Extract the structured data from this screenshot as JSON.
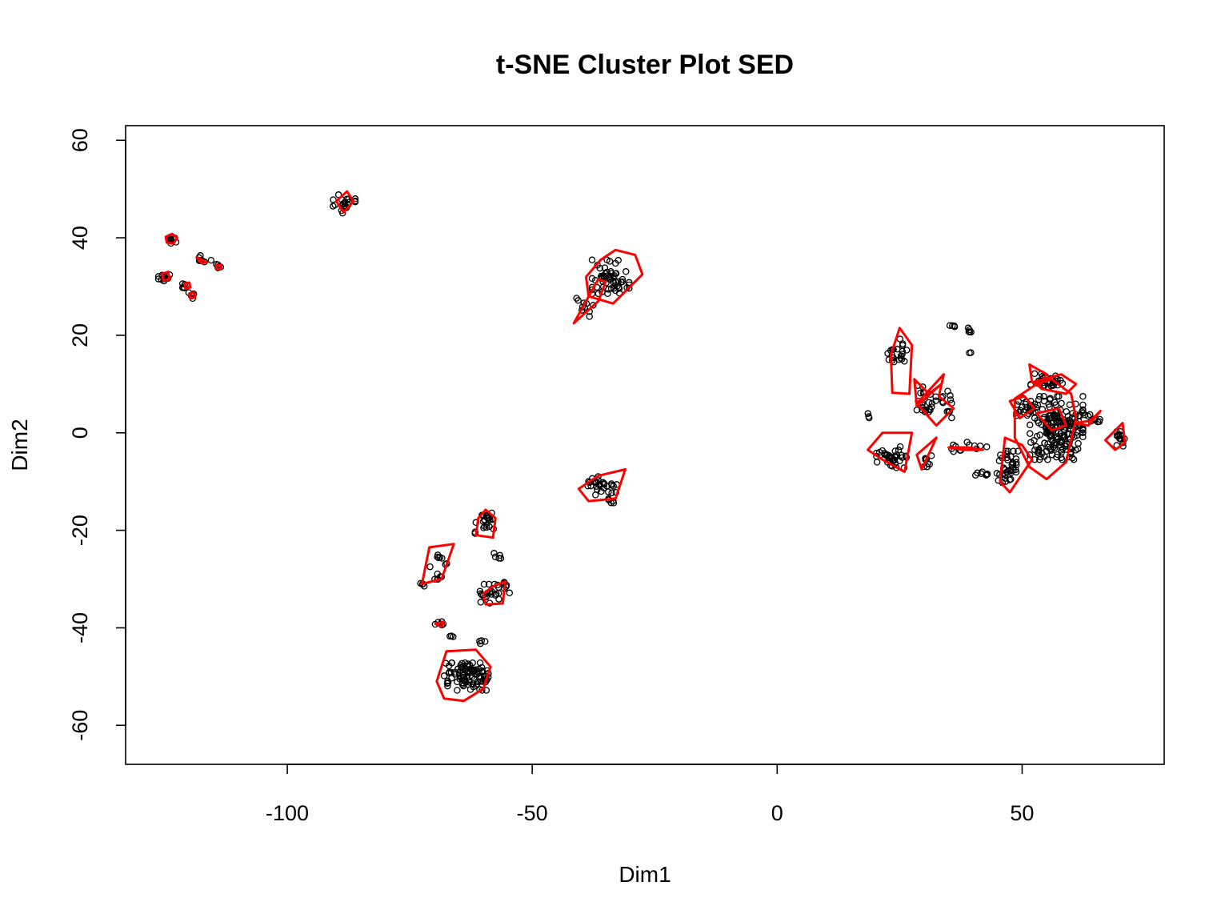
{
  "chart_data": {
    "type": "scatter",
    "title": "t-SNE Cluster Plot SED",
    "xlabel": "Dim1",
    "ylabel": "Dim2",
    "xlim": [
      -133,
      79
    ],
    "ylim": [
      -68,
      63
    ],
    "xticks": [
      -100,
      -50,
      0,
      50
    ],
    "yticks": [
      -60,
      -40,
      -20,
      0,
      20,
      40,
      60
    ],
    "xtick_labels": [
      "-100",
      "-50",
      "0",
      "50"
    ],
    "ytick_labels": [
      "-60",
      "-40",
      "-20",
      "0",
      "20",
      "40",
      "60"
    ],
    "grid": false,
    "legend": "none",
    "point_color": "#000000",
    "hull_color": "#ff0000",
    "point_groups": [
      {
        "center": [
          -124,
          39.5
        ],
        "spread": [
          1.2,
          1.0
        ],
        "n": 10
      },
      {
        "center": [
          -125,
          32
        ],
        "spread": [
          1.2,
          0.8
        ],
        "n": 10
      },
      {
        "center": [
          -120.5,
          30.2
        ],
        "spread": [
          0.8,
          0.8
        ],
        "n": 6
      },
      {
        "center": [
          -119.5,
          28.2
        ],
        "spread": [
          0.8,
          0.6
        ],
        "n": 6
      },
      {
        "center": [
          -117.5,
          35.5
        ],
        "spread": [
          1.8,
          0.8
        ],
        "n": 8
      },
      {
        "center": [
          -114,
          34
        ],
        "spread": [
          0.8,
          0.6
        ],
        "n": 5
      },
      {
        "center": [
          -88.5,
          47
        ],
        "spread": [
          2.2,
          1.8
        ],
        "n": 22
      },
      {
        "center": [
          -34,
          32
        ],
        "spread": [
          3.5,
          3.2
        ],
        "n": 60
      },
      {
        "center": [
          -39,
          26
        ],
        "spread": [
          1.8,
          2.0
        ],
        "n": 10
      },
      {
        "center": [
          -36,
          -10.8
        ],
        "spread": [
          3.0,
          1.8
        ],
        "n": 30
      },
      {
        "center": [
          -34,
          -14
        ],
        "spread": [
          0.8,
          0.6
        ],
        "n": 5
      },
      {
        "center": [
          -59.5,
          -18.5
        ],
        "spread": [
          2.0,
          2.0
        ],
        "n": 25
      },
      {
        "center": [
          -69,
          -27
        ],
        "spread": [
          1.8,
          2.8
        ],
        "n": 14
      },
      {
        "center": [
          -72,
          -31
        ],
        "spread": [
          0.8,
          0.6
        ],
        "n": 4
      },
      {
        "center": [
          -57,
          -25.5
        ],
        "spread": [
          0.8,
          0.8
        ],
        "n": 5
      },
      {
        "center": [
          -58.5,
          -33
        ],
        "spread": [
          2.0,
          1.8
        ],
        "n": 22
      },
      {
        "center": [
          -55.5,
          -31.5
        ],
        "spread": [
          0.8,
          1.5
        ],
        "n": 6
      },
      {
        "center": [
          -69,
          -39
        ],
        "spread": [
          1.2,
          0.6
        ],
        "n": 6
      },
      {
        "center": [
          -66.5,
          -41.8
        ],
        "spread": [
          0.5,
          0.3
        ],
        "n": 3
      },
      {
        "center": [
          -60,
          -43
        ],
        "spread": [
          0.8,
          0.4
        ],
        "n": 4
      },
      {
        "center": [
          -63.5,
          -50
        ],
        "spread": [
          4.2,
          2.6
        ],
        "n": 95
      },
      {
        "center": [
          24.5,
          16
        ],
        "spread": [
          1.8,
          3.0
        ],
        "n": 22
      },
      {
        "center": [
          30,
          7
        ],
        "spread": [
          2.2,
          2.5
        ],
        "n": 25
      },
      {
        "center": [
          34,
          6
        ],
        "spread": [
          1.5,
          2.8
        ],
        "n": 12
      },
      {
        "center": [
          36,
          22
        ],
        "spread": [
          0.7,
          0.3
        ],
        "n": 4
      },
      {
        "center": [
          39.5,
          21
        ],
        "spread": [
          0.7,
          0.6
        ],
        "n": 5
      },
      {
        "center": [
          39.5,
          16.5
        ],
        "spread": [
          0.3,
          0.3
        ],
        "n": 2
      },
      {
        "center": [
          23.5,
          -5
        ],
        "spread": [
          3.0,
          2.0
        ],
        "n": 38
      },
      {
        "center": [
          18.5,
          3.5
        ],
        "spread": [
          0.3,
          0.4
        ],
        "n": 3
      },
      {
        "center": [
          30.5,
          -6
        ],
        "spread": [
          1.2,
          1.5
        ],
        "n": 8
      },
      {
        "center": [
          39,
          -3
        ],
        "spread": [
          3.5,
          1.0
        ],
        "n": 12
      },
      {
        "center": [
          42,
          -8.5
        ],
        "spread": [
          1.5,
          0.6
        ],
        "n": 8
      },
      {
        "center": [
          47,
          -7
        ],
        "spread": [
          2.0,
          3.0
        ],
        "n": 40
      },
      {
        "center": [
          57,
          1
        ],
        "spread": [
          5.0,
          6.0
        ],
        "n": 200
      },
      {
        "center": [
          51,
          5
        ],
        "spread": [
          2.0,
          2.0
        ],
        "n": 25
      },
      {
        "center": [
          55,
          10.5
        ],
        "spread": [
          3.0,
          1.5
        ],
        "n": 30
      },
      {
        "center": [
          64.5,
          2.5
        ],
        "spread": [
          2.0,
          1.2
        ],
        "n": 10
      },
      {
        "center": [
          70,
          -1.2
        ],
        "spread": [
          1.0,
          1.5
        ],
        "n": 15
      }
    ],
    "hulls": [
      {
        "points": [
          [
            -124.8,
            40.2
          ],
          [
            -123.5,
            40.8
          ],
          [
            -122.5,
            40
          ],
          [
            -123.2,
            38.8
          ],
          [
            -124.6,
            39
          ]
        ]
      },
      {
        "points": [
          [
            -125.6,
            32.6
          ],
          [
            -124.3,
            33
          ],
          [
            -124,
            31.5
          ],
          [
            -125.3,
            31.2
          ]
        ]
      },
      {
        "points": [
          [
            -121,
            30.6
          ],
          [
            -120,
            30.8
          ],
          [
            -119.8,
            29.8
          ],
          [
            -120.8,
            29.6
          ]
        ]
      },
      {
        "points": [
          [
            -120,
            28.6
          ],
          [
            -119,
            28.8
          ],
          [
            -118.8,
            27.8
          ],
          [
            -119.8,
            27.6
          ]
        ]
      },
      {
        "points": [
          [
            -118.5,
            36
          ],
          [
            -116.5,
            35
          ],
          [
            -117.5,
            34.8
          ]
        ]
      },
      {
        "points": [
          [
            -114.5,
            34.4
          ],
          [
            -113.5,
            34.4
          ],
          [
            -113.5,
            33.6
          ],
          [
            -114.5,
            33.6
          ]
        ]
      },
      {
        "points": [
          [
            -90,
            47.5
          ],
          [
            -87.8,
            49.5
          ],
          [
            -86.5,
            47.5
          ],
          [
            -88.5,
            45.2
          ]
        ]
      },
      {
        "points": [
          [
            -36,
            35.5
          ],
          [
            -33,
            37.5
          ],
          [
            -29,
            36.5
          ],
          [
            -27.5,
            32.5
          ],
          [
            -33.5,
            26.5
          ],
          [
            -38.5,
            28
          ],
          [
            -39,
            32
          ]
        ]
      },
      {
        "points": [
          [
            -41.5,
            22.5
          ],
          [
            -36.5,
            31.5
          ],
          [
            -35,
            31
          ],
          [
            -36.5,
            27
          ]
        ]
      },
      {
        "points": [
          [
            -40.5,
            -11.5
          ],
          [
            -36.5,
            -8.8
          ],
          [
            -31,
            -7.5
          ],
          [
            -33,
            -13.5
          ],
          [
            -38.5,
            -14
          ]
        ]
      },
      {
        "points": [
          [
            -61,
            -17.5
          ],
          [
            -59.5,
            -15.8
          ],
          [
            -57.5,
            -17.5
          ],
          [
            -58,
            -21.5
          ],
          [
            -61.5,
            -21
          ]
        ]
      },
      {
        "points": [
          [
            -71,
            -23.5
          ],
          [
            -66,
            -22.8
          ],
          [
            -68.5,
            -30
          ],
          [
            -72.5,
            -31
          ]
        ]
      },
      {
        "points": [
          [
            -60,
            -33
          ],
          [
            -58,
            -31.5
          ],
          [
            -55.5,
            -30.5
          ],
          [
            -56,
            -35
          ],
          [
            -59.5,
            -35.2
          ]
        ]
      },
      {
        "points": [
          [
            -69.8,
            -39.2
          ],
          [
            -68,
            -38.8
          ],
          [
            -68.5,
            -39.8
          ]
        ]
      },
      {
        "points": [
          [
            -67.5,
            -44.8
          ],
          [
            -61.5,
            -44.5
          ],
          [
            -58.5,
            -48
          ],
          [
            -60,
            -52.5
          ],
          [
            -64,
            -55
          ],
          [
            -68,
            -54.5
          ],
          [
            -69.5,
            -51
          ]
        ]
      },
      {
        "points": [
          [
            23.2,
            16
          ],
          [
            25,
            21.5
          ],
          [
            27.5,
            18
          ],
          [
            27,
            8
          ],
          [
            23.5,
            8.2
          ]
        ]
      },
      {
        "points": [
          [
            28,
            11
          ],
          [
            31,
            8
          ],
          [
            33.5,
            10
          ],
          [
            28.5,
            5.5
          ]
        ]
      },
      {
        "points": [
          [
            28.5,
            6
          ],
          [
            34,
            12
          ],
          [
            33,
            7.5
          ],
          [
            36,
            5
          ],
          [
            32.5,
            1.5
          ]
        ]
      },
      {
        "points": [
          [
            18.5,
            -3.5
          ],
          [
            21.5,
            0
          ],
          [
            27.5,
            0
          ],
          [
            26,
            -8
          ],
          [
            21.5,
            -5.5
          ]
        ]
      },
      {
        "points": [
          [
            28.5,
            -4.5
          ],
          [
            32.5,
            -1
          ],
          [
            29.5,
            -7.5
          ]
        ]
      },
      {
        "points": [
          [
            46.5,
            -1
          ],
          [
            50,
            -2.5
          ],
          [
            52,
            -5.5
          ],
          [
            47.5,
            -12.2
          ],
          [
            45.5,
            -10
          ]
        ]
      },
      {
        "points": [
          [
            48.5,
            7
          ],
          [
            53,
            10
          ],
          [
            56,
            11
          ],
          [
            60,
            8
          ],
          [
            61,
            3
          ],
          [
            59,
            -6
          ],
          [
            55,
            -9.5
          ],
          [
            51.5,
            -7
          ],
          [
            48.5,
            -1
          ]
        ]
      },
      {
        "points": [
          [
            51.5,
            14
          ],
          [
            55,
            12
          ],
          [
            53.5,
            9.5
          ],
          [
            52,
            10.5
          ]
        ]
      },
      {
        "points": [
          [
            52.5,
            10.5
          ],
          [
            58,
            12
          ],
          [
            61,
            10
          ],
          [
            59,
            8
          ],
          [
            54,
            9
          ]
        ]
      },
      {
        "points": [
          [
            47.5,
            6.5
          ],
          [
            50.5,
            7.5
          ],
          [
            52.5,
            5
          ],
          [
            49.5,
            3
          ]
        ]
      },
      {
        "points": [
          [
            53,
            4
          ],
          [
            57.5,
            5
          ],
          [
            59,
            1.5
          ],
          [
            56,
            0.5
          ]
        ]
      },
      {
        "points": [
          [
            61,
            2
          ],
          [
            64,
            2.5
          ],
          [
            66,
            4.5
          ],
          [
            63.5,
            1.5
          ]
        ]
      },
      {
        "points": [
          [
            67,
            -1.5
          ],
          [
            70.5,
            2
          ],
          [
            71,
            -2
          ],
          [
            69,
            -3.5
          ]
        ]
      },
      {
        "points": [
          [
            35,
            -3
          ],
          [
            39,
            -3
          ],
          [
            42,
            -3.5
          ],
          [
            38,
            -3.5
          ]
        ]
      }
    ]
  }
}
